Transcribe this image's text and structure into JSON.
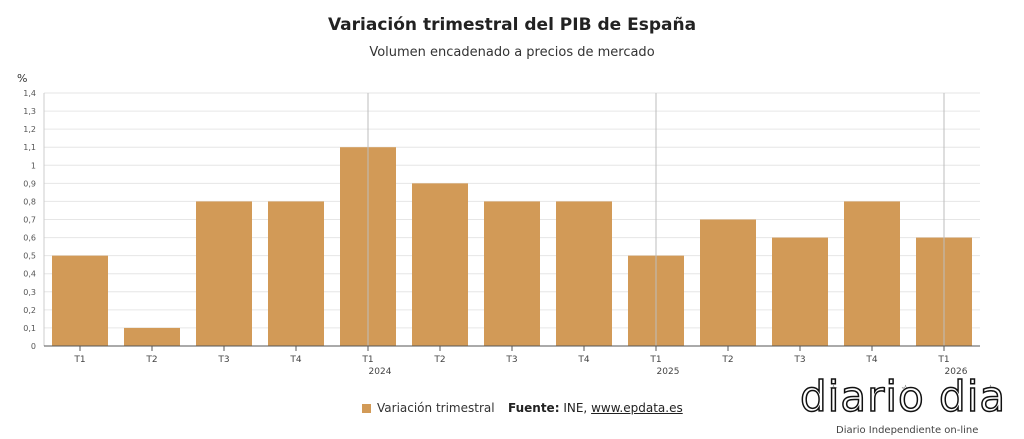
{
  "chart_data": {
    "type": "bar",
    "title": "Variación trimestral del PIB de España",
    "subtitle": "Volumen encadenado a precios de mercado",
    "unit": "%",
    "categories": [
      "T1",
      "T2",
      "T3",
      "T4",
      "T1",
      "T2",
      "T3",
      "T4",
      "T1",
      "T2",
      "T3",
      "T4",
      "T1"
    ],
    "year_labels": [
      {
        "index": 4,
        "label": "2024"
      },
      {
        "index": 8,
        "label": "2025"
      },
      {
        "index": 12,
        "label": "2026"
      }
    ],
    "series": [
      {
        "name": "Variación trimestral",
        "color": "#d29a57",
        "values": [
          0.5,
          0.1,
          0.8,
          0.8,
          1.1,
          0.9,
          0.8,
          0.8,
          0.5,
          0.7,
          0.6,
          0.8,
          0.6
        ]
      }
    ],
    "ylim": [
      0,
      1.4
    ],
    "yticks": [
      "0",
      "0,1",
      "0,2",
      "0,3",
      "0,4",
      "0,5",
      "0,6",
      "0,7",
      "0,8",
      "0,9",
      "1",
      "1,1",
      "1,2",
      "1,3",
      "1,4"
    ],
    "grid": true,
    "legend_position": "bottom"
  },
  "legend": {
    "label": "Variación trimestral"
  },
  "source": {
    "label": "Fuente:",
    "text": "INE,",
    "link": "www.epdata.es"
  },
  "logo": {
    "text": "diario dia",
    "tagline": "Diario Independiente on-line"
  }
}
